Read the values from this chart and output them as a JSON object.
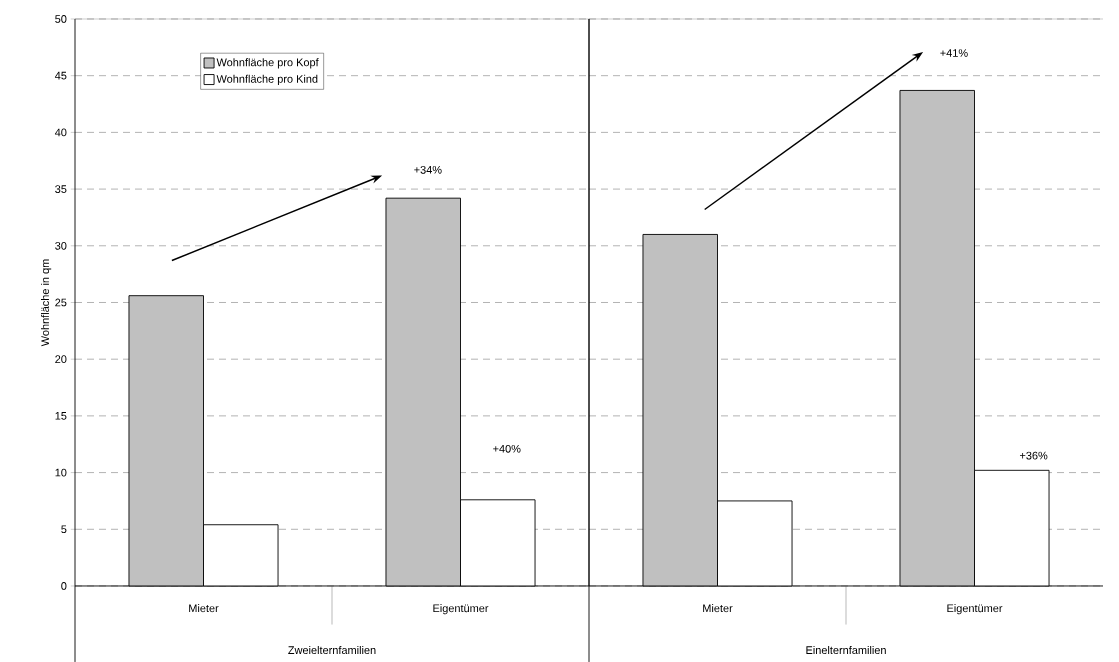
{
  "chart_data": [
    {
      "type": "bar",
      "ylabel": "Wohnfläche in qm",
      "xlabel": "Zweielternfamilien",
      "categories": [
        "Mieter",
        "Eigentümer"
      ],
      "series": [
        {
          "name": "Wohnfläche pro Kopf",
          "color": "#c0c0c0",
          "values": [
            25.6,
            34.2
          ]
        },
        {
          "name": "Wohnfläche pro Kind",
          "color": "#ffffff",
          "values": [
            5.4,
            7.6
          ]
        }
      ],
      "ylim": [
        0,
        50
      ],
      "yticks": [
        0,
        5,
        10,
        15,
        20,
        25,
        30,
        35,
        40,
        45,
        50
      ],
      "grid": "y",
      "legend": "top left",
      "annotations": [
        "+34%",
        "+40%"
      ]
    },
    {
      "type": "bar",
      "xlabel": "Einelternfamilien",
      "categories": [
        "Mieter",
        "Eigentümer"
      ],
      "series": [
        {
          "color": "#c0c0c0",
          "values": [
            31.0,
            43.7
          ]
        },
        {
          "color": "#ffffff",
          "values": [
            7.5,
            10.2
          ]
        }
      ],
      "ylim": [
        0,
        50
      ],
      "yticks": [
        0,
        5,
        10,
        15,
        20,
        25,
        30,
        35,
        40,
        45,
        50
      ],
      "grid": "y",
      "tick_labels": "x",
      "annotations": [
        "+41%",
        "+36%"
      ]
    }
  ]
}
